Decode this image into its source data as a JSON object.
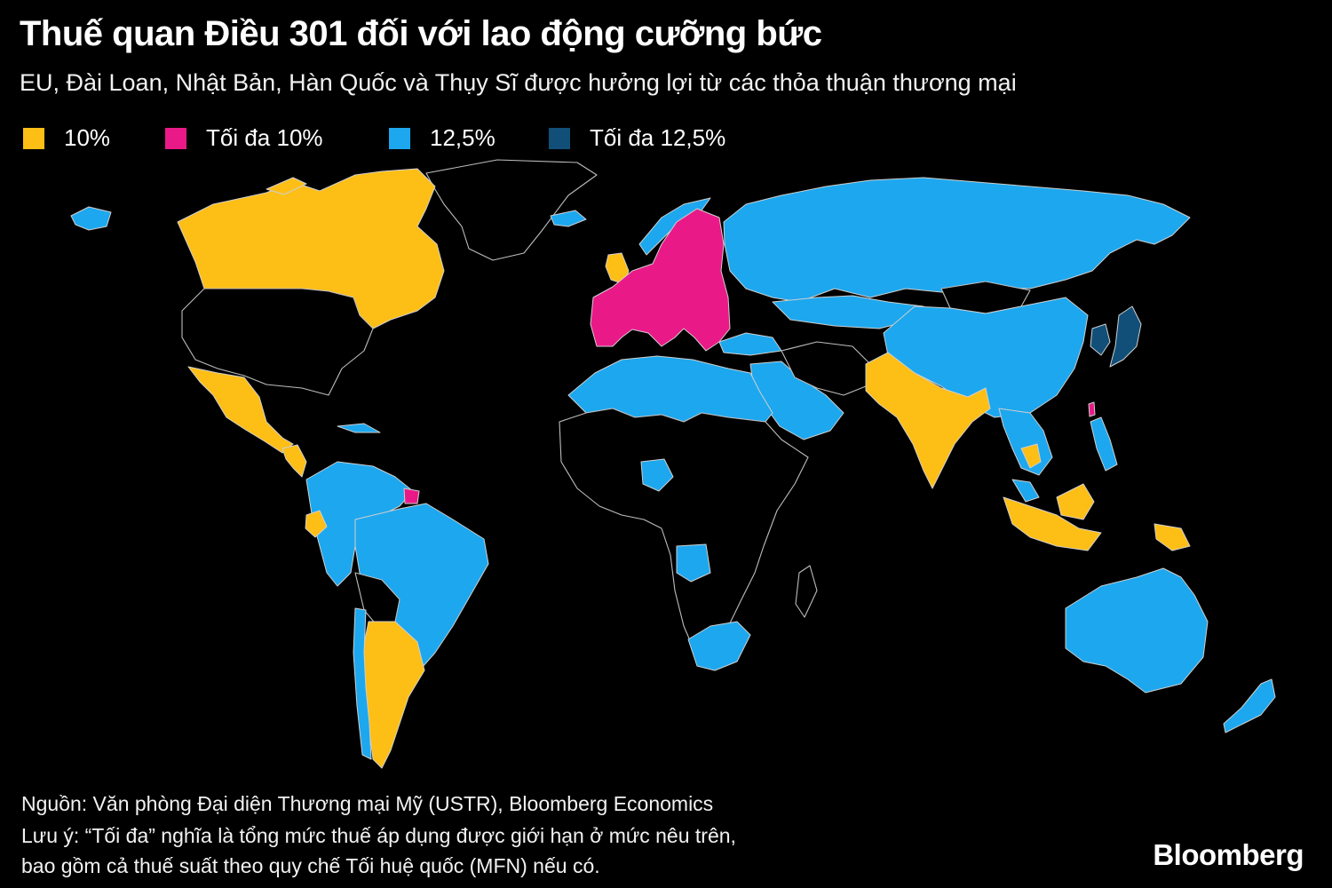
{
  "title": "Thuế quan Điều 301 đối với lao động cưỡng bức",
  "subtitle": "EU, Đài Loan, Nhật Bản, Hàn Quốc và Thụy Sĩ được hưởng lợi từ các thỏa thuận thương mại",
  "legend": [
    {
      "label": "10%",
      "color": "#FDBE15"
    },
    {
      "label": "Tối đa 10%",
      "color": "#EA1988"
    },
    {
      "label": "12,5%",
      "color": "#1DA7EE"
    },
    {
      "label": "Tối đa 12,5%",
      "color": "#114F78"
    }
  ],
  "colors": {
    "background": "#000000",
    "no_data": "#000000",
    "border": "#CFCFCF"
  },
  "footer": {
    "source": "Nguồn: Văn phòng Đại diện Thương mại Mỹ (USTR), Bloomberg Economics",
    "note_line1": "Lưu ý: “Tối đa” nghĩa là tổng mức thuế áp dụng được giới hạn ở mức nêu trên,",
    "note_line2": "bao gồm cả thuế suất theo quy chế Tối huệ quốc (MFN) nếu có."
  },
  "brand": "Bloomberg"
}
